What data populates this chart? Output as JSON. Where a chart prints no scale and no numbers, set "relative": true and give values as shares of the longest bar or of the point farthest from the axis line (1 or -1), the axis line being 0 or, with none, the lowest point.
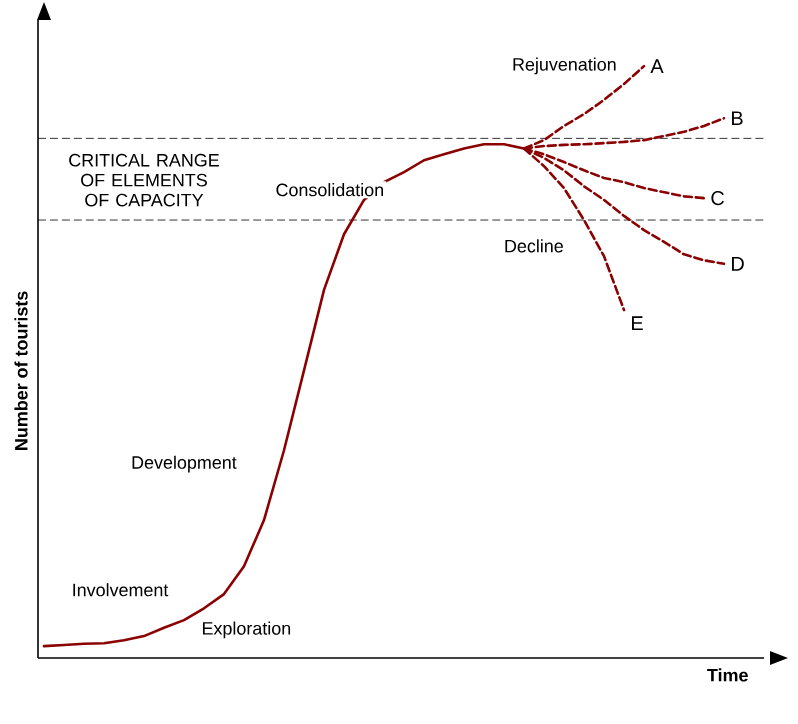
{
  "chart_data": {
    "type": "line",
    "relative": true,
    "xlabel": "Time",
    "ylabel": "Number of tourists",
    "marker": "none",
    "categories": [
      null,
      null,
      null,
      null,
      null,
      null,
      null,
      null,
      null,
      null,
      null,
      null,
      null,
      null,
      null,
      null,
      null,
      null,
      null,
      null,
      null,
      null,
      null,
      null,
      null,
      null,
      null,
      null,
      null,
      null,
      null,
      null,
      null,
      null,
      null
    ],
    "series": [
      {
        "color": "#8b0000",
        "line_style": "solid",
        "values": [
          0.02,
          0.022,
          0.024,
          0.025,
          0.03,
          0.037,
          0.051,
          0.064,
          0.084,
          0.108,
          0.155,
          0.233,
          0.351,
          0.486,
          0.622,
          0.716,
          0.774,
          0.804,
          0.821,
          0.841,
          0.851,
          0.861,
          0.868,
          0.868,
          0.861,
          null,
          null,
          null,
          null,
          null,
          null,
          null,
          null,
          null,
          null
        ]
      },
      {
        "name": "A",
        "color": "#8b0000",
        "line_style": "dashed",
        "values": [
          null,
          null,
          null,
          null,
          null,
          null,
          null,
          null,
          null,
          null,
          null,
          null,
          null,
          null,
          null,
          null,
          null,
          null,
          null,
          null,
          null,
          null,
          null,
          null,
          0.861,
          0.875,
          0.899,
          0.919,
          0.943,
          0.97,
          1.0,
          null,
          null,
          null,
          null
        ]
      },
      {
        "name": "B",
        "color": "#8b0000",
        "line_style": "dashed",
        "values": [
          null,
          null,
          null,
          null,
          null,
          null,
          null,
          null,
          null,
          null,
          null,
          null,
          null,
          null,
          null,
          null,
          null,
          null,
          null,
          null,
          null,
          null,
          null,
          null,
          0.861,
          0.865,
          0.867,
          0.868,
          0.87,
          0.872,
          0.875,
          0.882,
          0.889,
          0.899,
          0.912
        ]
      },
      {
        "name": "C",
        "color": "#8b0000",
        "line_style": "dashed",
        "values": [
          null,
          null,
          null,
          null,
          null,
          null,
          null,
          null,
          null,
          null,
          null,
          null,
          null,
          null,
          null,
          null,
          null,
          null,
          null,
          null,
          null,
          null,
          null,
          null,
          0.861,
          0.851,
          0.838,
          0.824,
          0.811,
          0.804,
          0.794,
          0.787,
          0.78,
          0.777,
          null
        ]
      },
      {
        "name": "D",
        "color": "#8b0000",
        "line_style": "dashed",
        "values": [
          null,
          null,
          null,
          null,
          null,
          null,
          null,
          null,
          null,
          null,
          null,
          null,
          null,
          null,
          null,
          null,
          null,
          null,
          null,
          null,
          null,
          null,
          null,
          null,
          0.861,
          0.845,
          0.824,
          0.797,
          0.774,
          0.747,
          0.723,
          0.703,
          0.682,
          0.672,
          0.666
        ]
      },
      {
        "name": "E",
        "color": "#8b0000",
        "line_style": "dashed",
        "values": [
          null,
          null,
          null,
          null,
          null,
          null,
          null,
          null,
          null,
          null,
          null,
          null,
          null,
          null,
          null,
          null,
          null,
          null,
          null,
          null,
          null,
          null,
          null,
          null,
          0.861,
          0.831,
          0.794,
          0.74,
          0.679,
          0.588,
          null,
          null,
          null,
          null,
          null
        ]
      }
    ],
    "ref_lines": [
      {
        "axis": "y",
        "value": 0.878,
        "color": "#000000",
        "line_style": "dashed"
      },
      {
        "axis": "y",
        "value": 0.74,
        "color": "#000000",
        "line_style": "dashed"
      }
    ],
    "annotations": [
      "Rejuvenation",
      "Consolidation",
      "Decline",
      "Development",
      "Involvement",
      "Exploration",
      "CRITICAL RANGE OF ELEMENTS OF CAPACITY"
    ]
  }
}
